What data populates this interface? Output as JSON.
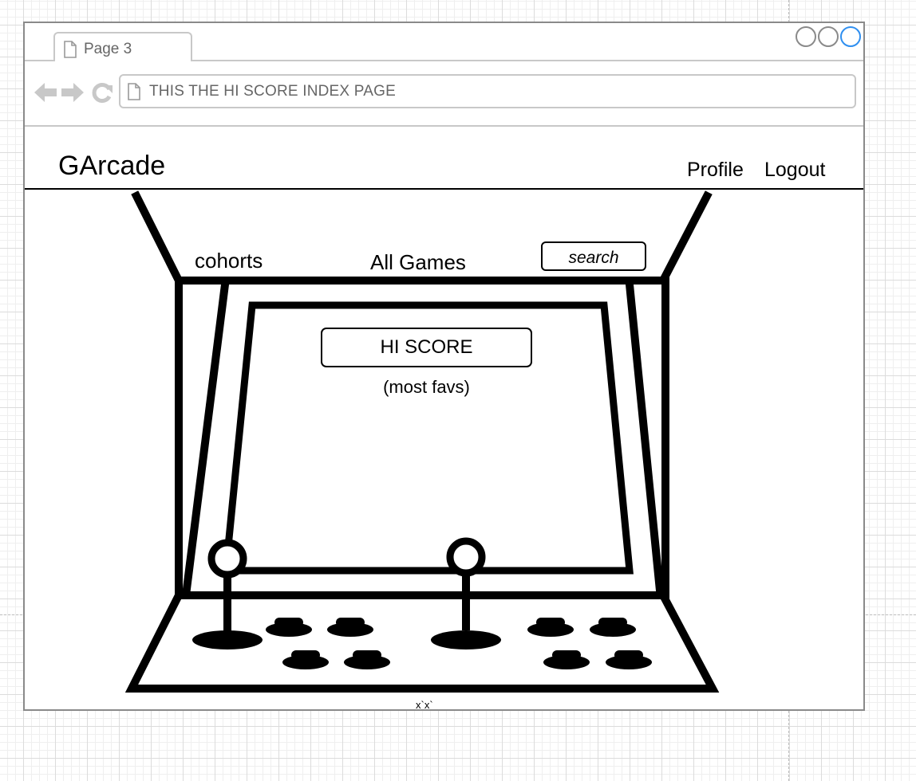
{
  "browser": {
    "tab_title": "Page 3",
    "address": "THIS THE HI SCORE INDEX PAGE",
    "window_controls": [
      "minimize",
      "maximize",
      "close"
    ],
    "active_control_color": "#2f8ff0"
  },
  "header": {
    "brand": "GArcade",
    "nav": [
      {
        "label": "Profile"
      },
      {
        "label": "Logout"
      }
    ]
  },
  "arcade_nav": {
    "cohorts": "cohorts",
    "all_games": "All Games",
    "search_placeholder": "search"
  },
  "main": {
    "hiscore_button": "HI SCORE",
    "hiscore_subtitle": "(most favs)"
  },
  "footer": {
    "mark": "x`x`"
  }
}
